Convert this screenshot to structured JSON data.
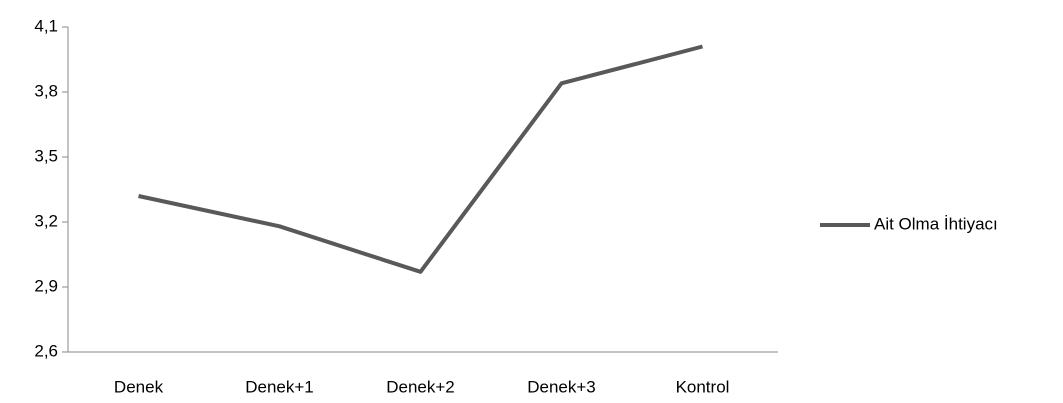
{
  "chart_data": {
    "type": "line",
    "categories": [
      "Denek",
      "Denek+1",
      "Denek+2",
      "Denek+3",
      "Kontrol"
    ],
    "series": [
      {
        "name": "Ait Olma İhtiyacı",
        "color": "#595959",
        "values": [
          3.32,
          3.18,
          2.97,
          3.84,
          4.01
        ]
      }
    ],
    "ylim": [
      2.6,
      4.1
    ],
    "yticks": [
      {
        "value": 2.6,
        "label": "2,6"
      },
      {
        "value": 2.9,
        "label": "2,9"
      },
      {
        "value": 3.2,
        "label": "3,2"
      },
      {
        "value": 3.5,
        "label": "3,5"
      },
      {
        "value": 3.8,
        "label": "3,8"
      },
      {
        "value": 4.1,
        "label": "4,1"
      }
    ],
    "grid": false,
    "legend": "right"
  }
}
